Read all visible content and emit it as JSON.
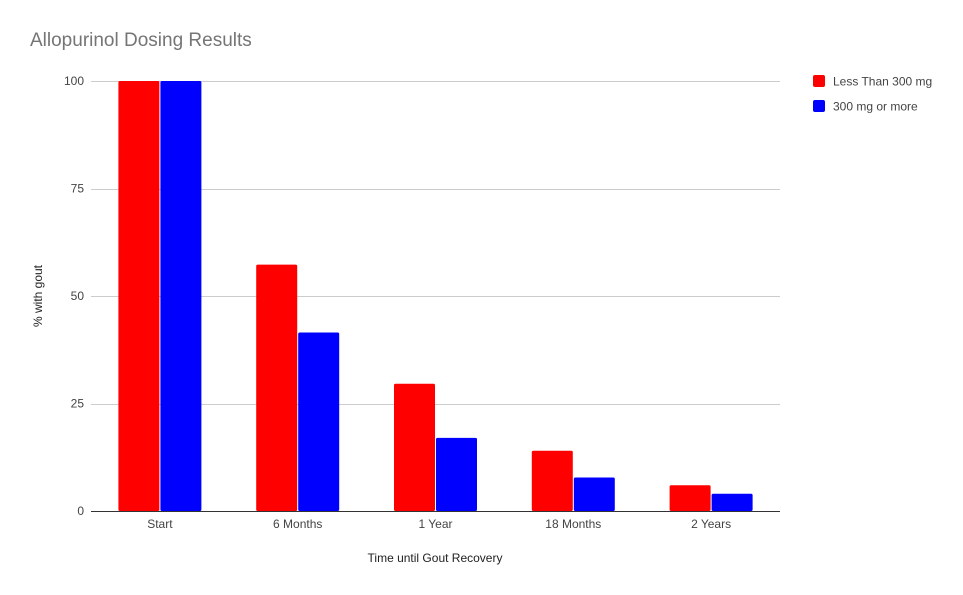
{
  "chart_data": {
    "type": "bar",
    "title": "Allopurinol Dosing Results",
    "xlabel": "Time until Gout Recovery",
    "ylabel": "% with gout",
    "categories": [
      "Start",
      "6 Months",
      "1 Year",
      "18 Months",
      "2 Years"
    ],
    "ylim": [
      0,
      100
    ],
    "yticks": [
      0,
      25,
      50,
      75,
      100
    ],
    "grid": true,
    "legend_position": "right",
    "series": [
      {
        "name": "Less Than 300 mg",
        "color": "#ff0000",
        "values": [
          100,
          57.3,
          29.6,
          14,
          6
        ]
      },
      {
        "name": "300 mg or more",
        "color": "#0000ff",
        "values": [
          100,
          41.5,
          17,
          7.8,
          4
        ]
      }
    ]
  }
}
